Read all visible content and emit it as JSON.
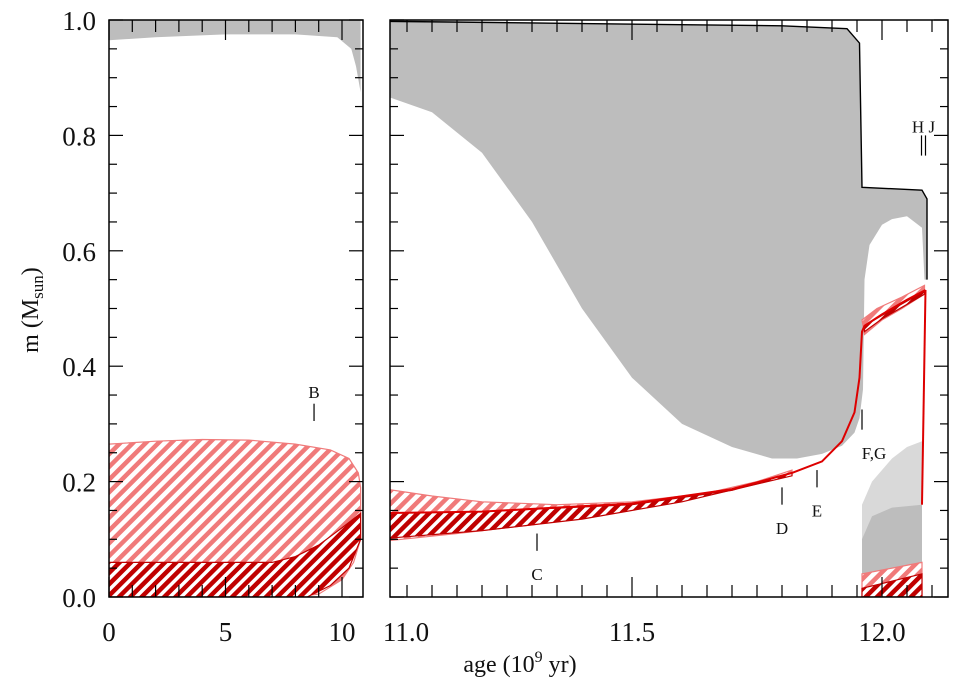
{
  "chart_data": {
    "type": "area",
    "title": "",
    "xlabel": "age (10^9 yr)",
    "xlabel_parts": {
      "base": "age (10",
      "exp": "9",
      "tail": " yr)"
    },
    "ylabel": "m (M_sun)",
    "ylabel_parts": {
      "base": "m (M",
      "sub": "sun",
      "tail": ")"
    },
    "ylim": [
      0,
      1.0
    ],
    "yticks": [
      "0.0",
      "0.2",
      "0.4",
      "0.6",
      "0.8",
      "1.0"
    ],
    "yticks_values": [
      0,
      0.2,
      0.4,
      0.6,
      0.8,
      1.0
    ],
    "colors": {
      "envelope": "#bdbdbd",
      "envelope_light": "#d9d9d9",
      "light_hatch": "#f07a7a",
      "dark_hatch": "#c00000",
      "line": "#dd0000",
      "outline": "#000000"
    },
    "panels": [
      {
        "name": "early",
        "xlim": [
          0,
          10.8
        ],
        "xticks": [
          "0",
          "5",
          "10"
        ],
        "xticks_values": [
          0,
          5,
          10
        ],
        "regions": [
          {
            "name": "convective-envelope",
            "kind": "gray",
            "points": [
              [
                0,
                1.0
              ],
              [
                10.8,
                1.0
              ],
              [
                10.8,
                0.875
              ],
              [
                10.6,
                0.92
              ],
              [
                10.4,
                0.95
              ],
              [
                9.8,
                0.97
              ],
              [
                8,
                0.975
              ],
              [
                5,
                0.975
              ],
              [
                2,
                0.97
              ],
              [
                0,
                0.965
              ]
            ]
          },
          {
            "name": "light-hatch-region",
            "kind": "light",
            "points": [
              [
                0,
                0.265
              ],
              [
                2,
                0.27
              ],
              [
                4,
                0.273
              ],
              [
                6,
                0.272
              ],
              [
                8,
                0.265
              ],
              [
                9.5,
                0.255
              ],
              [
                10.3,
                0.24
              ],
              [
                10.7,
                0.215
              ],
              [
                10.8,
                0.19
              ],
              [
                10.8,
                0.1
              ],
              [
                10.5,
                0.06
              ],
              [
                10,
                0.03
              ],
              [
                9,
                0.005
              ],
              [
                8,
                0
              ],
              [
                0,
                0
              ]
            ]
          },
          {
            "name": "dark-hatch-region",
            "kind": "dark",
            "points": [
              [
                0,
                0.06
              ],
              [
                7,
                0.06
              ],
              [
                8,
                0.07
              ],
              [
                9,
                0.09
              ],
              [
                10,
                0.12
              ],
              [
                10.8,
                0.145
              ],
              [
                10.8,
                0.1
              ],
              [
                10.3,
                0.05
              ],
              [
                9.5,
                0.02
              ],
              [
                8.5,
                0
              ],
              [
                0,
                0
              ]
            ]
          }
        ],
        "markers": [
          {
            "label": "B",
            "x": 8.8,
            "m_low": 0.305,
            "m_high": 0.335,
            "label_m": 0.355,
            "side": "above"
          }
        ]
      },
      {
        "name": "late",
        "xlim": [
          10.985,
          12.13
        ],
        "xticks": [
          "11.0",
          "11.5",
          "12.0"
        ],
        "xticks_values": [
          11.0,
          11.5,
          12.0
        ],
        "regions": [
          {
            "name": "convective-envelope",
            "kind": "gray",
            "points": [
              [
                10.985,
                1.0
              ],
              [
                11.8,
                0.99
              ],
              [
                11.93,
                0.985
              ],
              [
                11.955,
                0.96
              ],
              [
                11.96,
                0.71
              ],
              [
                12.08,
                0.705
              ],
              [
                12.09,
                0.69
              ],
              [
                12.09,
                0.55
              ],
              [
                12.085,
                0.55
              ],
              [
                12.08,
                0.64
              ],
              [
                12.05,
                0.66
              ],
              [
                12.02,
                0.655
              ],
              [
                12.0,
                0.645
              ],
              [
                11.975,
                0.61
              ],
              [
                11.965,
                0.55
              ],
              [
                11.962,
                0.36
              ],
              [
                11.955,
                0.31
              ],
              [
                11.945,
                0.285
              ],
              [
                11.92,
                0.262
              ],
              [
                11.88,
                0.248
              ],
              [
                11.83,
                0.24
              ],
              [
                11.78,
                0.24
              ],
              [
                11.7,
                0.26
              ],
              [
                11.6,
                0.3
              ],
              [
                11.5,
                0.38
              ],
              [
                11.4,
                0.5
              ],
              [
                11.3,
                0.65
              ],
              [
                11.2,
                0.77
              ],
              [
                11.1,
                0.84
              ],
              [
                10.985,
                0.875
              ]
            ]
          },
          {
            "name": "late-envelope-light",
            "kind": "graylight",
            "points": [
              [
                11.96,
                0
              ],
              [
                11.96,
                0.16
              ],
              [
                11.98,
                0.2
              ],
              [
                12.02,
                0.24
              ],
              [
                12.05,
                0.26
              ],
              [
                12.08,
                0.27
              ],
              [
                12.08,
                0
              ]
            ]
          },
          {
            "name": "late-envelope",
            "kind": "gray",
            "points": [
              [
                11.96,
                0
              ],
              [
                11.96,
                0.1
              ],
              [
                11.98,
                0.14
              ],
              [
                12.02,
                0.155
              ],
              [
                12.08,
                0.16
              ],
              [
                12.08,
                0
              ]
            ]
          },
          {
            "name": "light-hatch-region",
            "kind": "light",
            "points": [
              [
                10.985,
                0.19
              ],
              [
                11.1,
                0.175
              ],
              [
                11.2,
                0.165
              ],
              [
                11.35,
                0.16
              ],
              [
                11.5,
                0.165
              ],
              [
                11.65,
                0.18
              ],
              [
                11.75,
                0.2
              ],
              [
                11.82,
                0.22
              ],
              [
                11.82,
                0.212
              ],
              [
                11.7,
                0.185
              ],
              [
                11.5,
                0.155
              ],
              [
                11.3,
                0.125
              ],
              [
                11.15,
                0.11
              ],
              [
                10.985,
                0.095
              ]
            ]
          },
          {
            "name": "dark-hatch-region",
            "kind": "dark",
            "points": [
              [
                10.985,
                0.145
              ],
              [
                11.2,
                0.148
              ],
              [
                11.5,
                0.16
              ],
              [
                11.7,
                0.185
              ],
              [
                11.82,
                0.215
              ],
              [
                11.82,
                0.21
              ],
              [
                11.6,
                0.165
              ],
              [
                11.4,
                0.135
              ],
              [
                11.2,
                0.115
              ],
              [
                10.985,
                0.1
              ]
            ]
          },
          {
            "name": "shell-hatch-region",
            "kind": "light",
            "points": [
              [
                11.96,
                0.48
              ],
              [
                11.99,
                0.5
              ],
              [
                12.04,
                0.52
              ],
              [
                12.085,
                0.54
              ],
              [
                12.085,
                0.525
              ],
              [
                12.04,
                0.5
              ],
              [
                12.0,
                0.48
              ],
              [
                11.965,
                0.455
              ]
            ]
          },
          {
            "name": "shell-dark-hatch",
            "kind": "dark",
            "points": [
              [
                11.965,
                0.47
              ],
              [
                12.0,
                0.488
              ],
              [
                12.04,
                0.508
              ],
              [
                12.085,
                0.53
              ],
              [
                12.085,
                0.525
              ],
              [
                12.04,
                0.502
              ],
              [
                12.0,
                0.482
              ],
              [
                11.965,
                0.46
              ]
            ]
          },
          {
            "name": "bottom-light-hatch",
            "kind": "light",
            "points": [
              [
                11.96,
                0
              ],
              [
                11.96,
                0.04
              ],
              [
                12.02,
                0.05
              ],
              [
                12.08,
                0.06
              ],
              [
                12.08,
                0
              ]
            ]
          },
          {
            "name": "bottom-dark-hatch",
            "kind": "dark",
            "points": [
              [
                11.96,
                0
              ],
              [
                11.96,
                0.015
              ],
              [
                12.08,
                0.04
              ],
              [
                12.08,
                0
              ]
            ]
          }
        ],
        "lines": [
          {
            "name": "surface-outline",
            "kind": "outline",
            "points": [
              [
                10.985,
                0.998
              ],
              [
                11.8,
                0.99
              ],
              [
                11.93,
                0.985
              ],
              [
                11.955,
                0.96
              ],
              [
                11.96,
                0.71
              ],
              [
                12.08,
                0.705
              ],
              [
                12.09,
                0.69
              ],
              [
                12.09,
                0.55
              ]
            ]
          },
          {
            "name": "hydrogen-shell-line",
            "kind": "line",
            "points": [
              [
                10.985,
                0.145
              ],
              [
                11.2,
                0.148
              ],
              [
                11.5,
                0.162
              ],
              [
                11.7,
                0.187
              ],
              [
                11.82,
                0.215
              ],
              [
                11.88,
                0.235
              ],
              [
                11.92,
                0.27
              ],
              [
                11.945,
                0.32
              ],
              [
                11.955,
                0.38
              ],
              [
                11.96,
                0.46
              ],
              [
                11.965,
                0.47
              ],
              [
                12.0,
                0.49
              ],
              [
                12.05,
                0.515
              ],
              [
                12.087,
                0.532
              ]
            ]
          },
          {
            "name": "shell-drop-line",
            "kind": "line",
            "points": [
              [
                12.087,
                0.532
              ],
              [
                12.08,
                0.16
              ]
            ]
          }
        ],
        "markers": [
          {
            "label": "C",
            "x": 11.31,
            "m_low": 0.08,
            "m_high": 0.11,
            "label_m": 0.04,
            "side": "below"
          },
          {
            "label": "D",
            "x": 11.8,
            "m_low": 0.16,
            "m_high": 0.19,
            "label_m": 0.12,
            "side": "below"
          },
          {
            "label": "E",
            "x": 11.87,
            "m_low": 0.19,
            "m_high": 0.22,
            "label_m": 0.15,
            "side": "below"
          },
          {
            "label": "F,G",
            "x": 11.96,
            "m_low": 0.29,
            "m_high": 0.325,
            "label_m": 0.25,
            "side": "below"
          },
          {
            "label": "H J",
            "x": 12.083,
            "m_low": 0.765,
            "m_high": 0.8,
            "label_m": 0.815,
            "side": "above",
            "double": true
          }
        ]
      }
    ]
  }
}
